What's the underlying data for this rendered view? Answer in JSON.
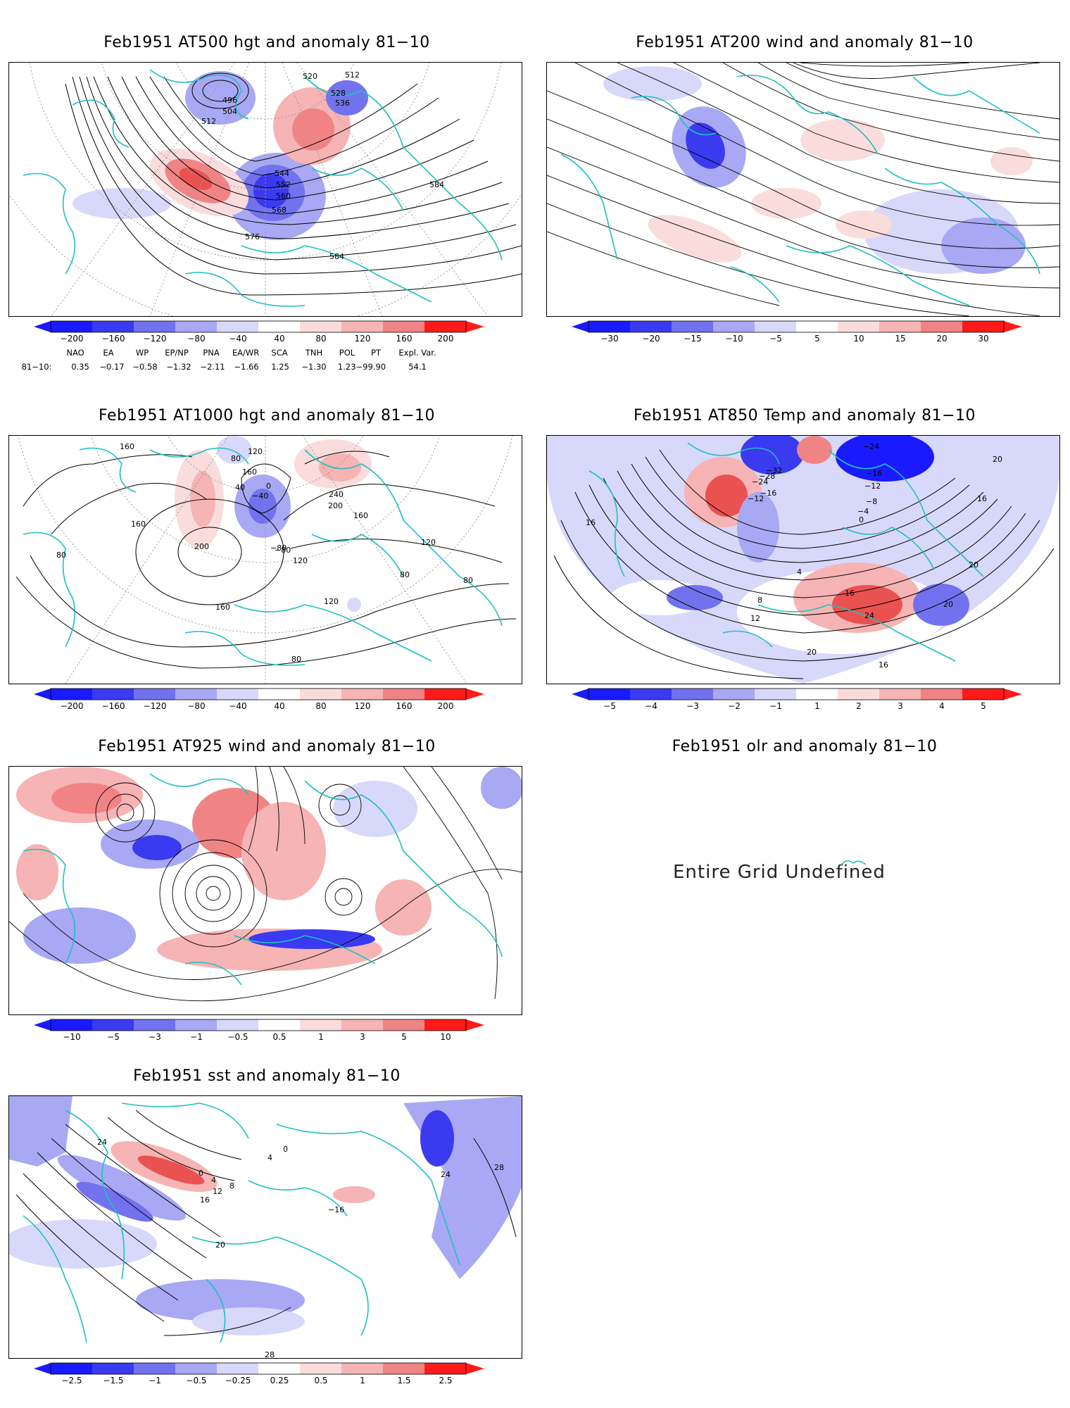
{
  "panels": [
    {
      "id": "p500",
      "title": "Feb1951 AT500 hgt and anomaly 81−10",
      "colorbar": {
        "ticks": [
          "−200",
          "−160",
          "−120",
          "−80",
          "−40",
          "40",
          "80",
          "120",
          "160",
          "200"
        ]
      },
      "contour_labels": [
        "520",
        "512",
        "528",
        "536",
        "496",
        "504",
        "512",
        "544",
        "552",
        "560",
        "568",
        "576",
        "584",
        "584"
      ]
    },
    {
      "id": "p200",
      "title": "Feb1951 AT200 wind and anomaly 81−10",
      "colorbar": {
        "ticks": [
          "−30",
          "−20",
          "−15",
          "−10",
          "−5",
          "5",
          "10",
          "15",
          "20",
          "30"
        ]
      }
    },
    {
      "id": "p1000",
      "title": "Feb1951 AT1000 hgt and anomaly 81−10",
      "colorbar": {
        "ticks": [
          "−200",
          "−160",
          "−120",
          "−80",
          "−40",
          "40",
          "80",
          "120",
          "160",
          "200"
        ]
      },
      "contour_labels": [
        "160",
        "120",
        "80",
        "160",
        "0",
        "−40",
        "40",
        "240",
        "200",
        "160",
        "160",
        "200",
        "−80",
        "120",
        "120",
        "80",
        "80",
        "80",
        "160",
        "120",
        "−80",
        "80"
      ]
    },
    {
      "id": "p850",
      "title": "Feb1951 AT850 Temp and anomaly 81−10",
      "colorbar": {
        "ticks": [
          "−5",
          "−4",
          "−3",
          "−2",
          "−1",
          "1",
          "2",
          "3",
          "4",
          "5"
        ]
      },
      "contour_labels": [
        "−24",
        "−16",
        "−12",
        "−32",
        "−28",
        "−24",
        "−16",
        "−12",
        "−8",
        "−4",
        "0",
        "4",
        "8",
        "12",
        "16",
        "20",
        "24",
        "20",
        "20",
        "16",
        "16",
        "16",
        "20"
      ]
    },
    {
      "id": "p925",
      "title": "Feb1951 AT925 wind and anomaly 81−10",
      "colorbar": {
        "ticks": [
          "−10",
          "−5",
          "−3",
          "−1",
          "−0.5",
          "0.5",
          "1",
          "3",
          "5",
          "10"
        ]
      }
    },
    {
      "id": "polr",
      "title": "Feb1951 olr and anomaly 81−10",
      "message": "Entire Grid Undefined"
    },
    {
      "id": "psst",
      "title": "Feb1951 sst and anomaly 81−10",
      "colorbar": {
        "ticks": [
          "−2.5",
          "−1.5",
          "−1",
          "−0.5",
          "−0.25",
          "0.25",
          "0.5",
          "1",
          "1.5",
          "2.5"
        ]
      },
      "contour_labels": [
        "24",
        "0",
        "4",
        "8",
        "12",
        "16",
        "20",
        "28",
        "28",
        "24",
        "−16",
        "0",
        "4"
      ]
    }
  ],
  "index_table": {
    "headers": [
      "NAO",
      "EA",
      "WP",
      "EP/NP",
      "PNA",
      "EA/WR",
      "SCA",
      "TNH",
      "POL",
      "PT",
      "Expl. Var."
    ],
    "row_label": "81−10:",
    "values": [
      "0.35",
      "−0.17",
      "−0.58",
      "−1.32",
      "−2.11",
      "−1.66",
      "1.25",
      "−1.30",
      "1.23−99.90",
      "",
      "54.1"
    ]
  },
  "colors": {
    "coast": "#20c0c0",
    "contour": "#000000",
    "grid": "#9a9a9a",
    "cbar_neg": [
      "#1a1aff",
      "#3a3af0",
      "#7272ee",
      "#a8a8f4",
      "#d8d8fa"
    ],
    "cbar_pos": [
      "#fadcdc",
      "#f6b4b4",
      "#f08484",
      "#ea5252",
      "#ff1a1a"
    ]
  }
}
